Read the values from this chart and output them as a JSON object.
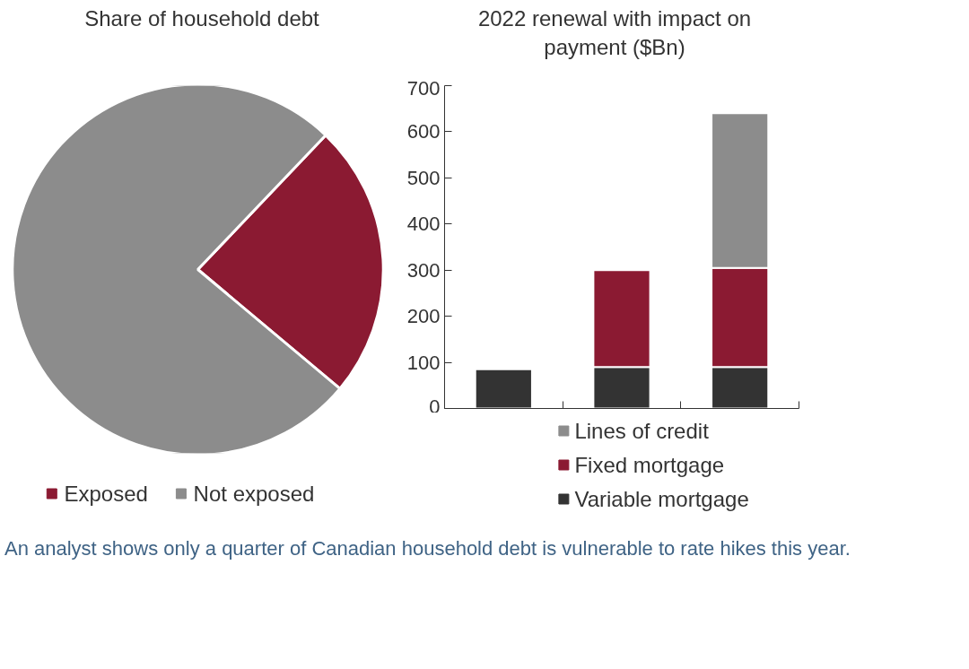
{
  "chart_data": [
    {
      "type": "pie",
      "title": "Share of household debt",
      "categories": [
        "Exposed",
        "Not exposed"
      ],
      "values": [
        24,
        76
      ],
      "colors": [
        "#8b1a32",
        "#8c8c8c"
      ],
      "legend": "bottom",
      "annotations": [
        "An analyst shows only a quarter of Canadian household debt is vulnerable to rate hikes this year."
      ]
    },
    {
      "type": "bar",
      "title": "2022 renewal with impact on payment ($Bn)",
      "categories": [
        null,
        null,
        null
      ],
      "stacked": true,
      "series": [
        {
          "name": "Variable mortgage",
          "color": "#333333",
          "values": [
            85,
            90,
            90
          ]
        },
        {
          "name": "Fixed mortgage",
          "color": "#8b1a32",
          "values": [
            null,
            210,
            215
          ]
        },
        {
          "name": "Lines of credit",
          "color": "#8c8c8c",
          "values": [
            null,
            null,
            335
          ]
        }
      ],
      "ylim": [
        0,
        700
      ],
      "yticks": [
        0,
        100,
        200,
        300,
        400,
        500,
        600,
        700
      ],
      "tick_labels": "y",
      "grid": false,
      "legend": "bottom"
    }
  ]
}
